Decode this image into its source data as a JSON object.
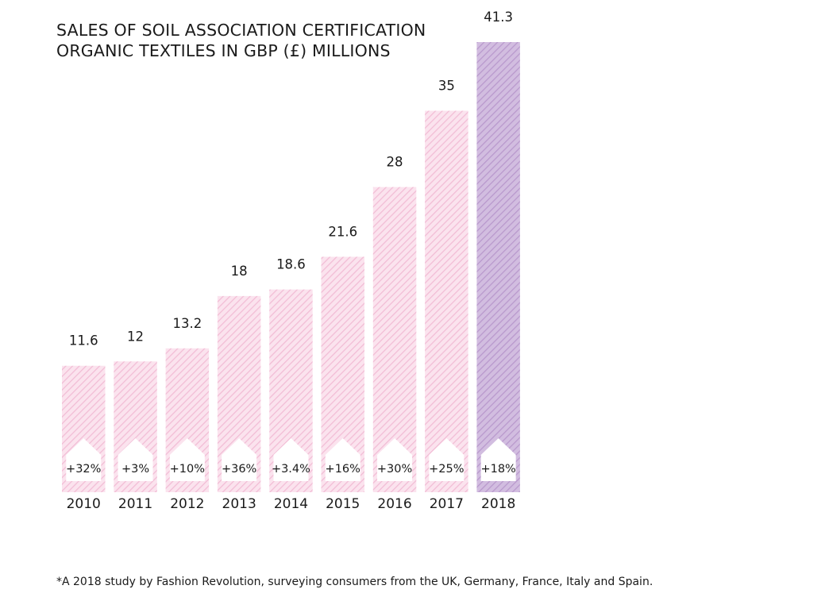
{
  "chart_data": {
    "type": "bar",
    "title_lines": [
      "SALES OF SOIL ASSOCIATION CERTIFICATION",
      "ORGANIC TEXTILES IN GBP (£) MILLIONS"
    ],
    "categories": [
      "2010",
      "2011",
      "2012",
      "2013",
      "2014",
      "2015",
      "2016",
      "2017",
      "2018"
    ],
    "values": [
      11.6,
      12,
      13.2,
      18,
      18.6,
      21.6,
      28,
      35,
      41.3
    ],
    "value_labels": [
      "11.6",
      "12",
      "13.2",
      "18",
      "18.6",
      "21.6",
      "28",
      "35",
      "41.3"
    ],
    "growth_labels": [
      "+32%",
      "+3%",
      "+10%",
      "+36%",
      "+3.4%",
      "+16%",
      "+30%",
      "+25%",
      "+18%"
    ],
    "highlight_category": "2018",
    "xlabel": "",
    "ylabel": "",
    "grid": false,
    "colors": {
      "bar_light": "#f7d3e4",
      "bar_highlight": "#b99acb",
      "text": "#1a1a1a"
    }
  },
  "footnote": "*A 2018 study by Fashion Revolution, surveying consumers from the UK, Germany, France, Italy and Spain."
}
